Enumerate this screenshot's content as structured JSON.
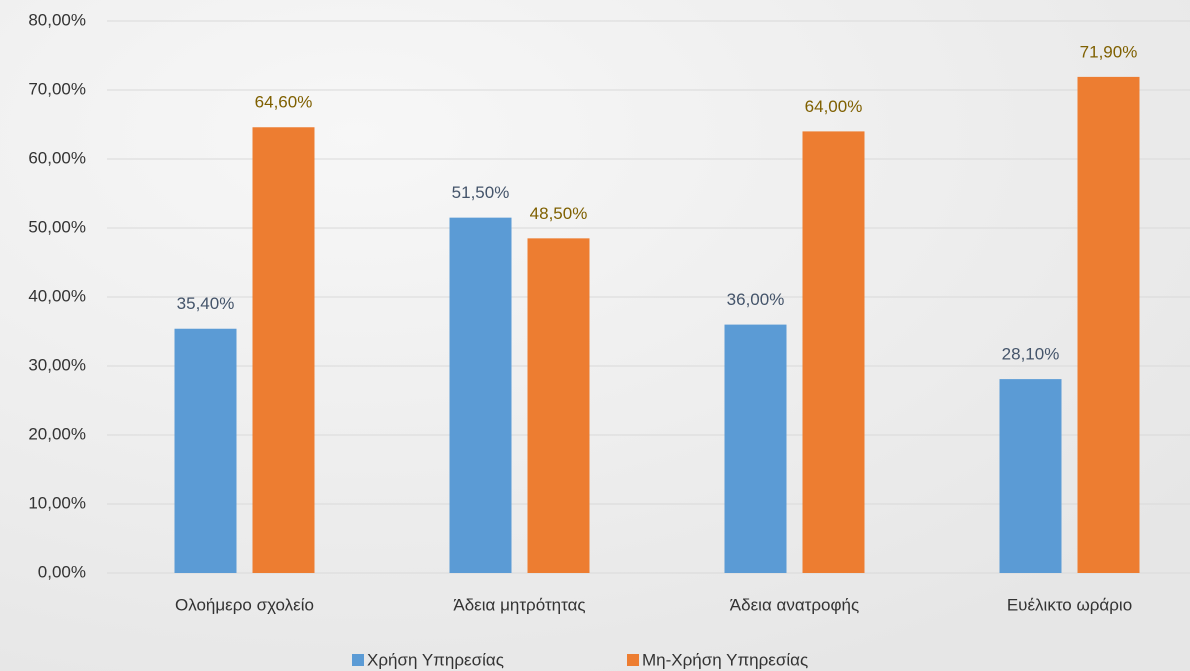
{
  "chart_data": {
    "type": "bar",
    "categories": [
      "Ολοήμερο σχολείο",
      "Άδεια μητρότητας",
      "Άδεια ανατροφής",
      "Ευέλικτο ωράριο"
    ],
    "series": [
      {
        "name": "Χρήση Υπηρεσίας",
        "color": "#5b9bd5",
        "label_color": "#44546a",
        "values": [
          35.4,
          51.5,
          36.0,
          28.1
        ],
        "value_labels": [
          "35,40%",
          "51,50%",
          "36,00%",
          "28,10%"
        ]
      },
      {
        "name": "Μη-Χρήση Υπηρεσίας",
        "color": "#ed7d31",
        "label_color": "#7f6000",
        "values": [
          64.6,
          48.5,
          64.0,
          71.9
        ],
        "value_labels": [
          "64,60%",
          "48,50%",
          "64,00%",
          "71,90%"
        ]
      }
    ],
    "ylim": [
      0,
      80
    ],
    "yticks": [
      {
        "value": 0,
        "label": "0,00%"
      },
      {
        "value": 10,
        "label": "10,00%"
      },
      {
        "value": 20,
        "label": "20,00%"
      },
      {
        "value": 30,
        "label": "30,00%"
      },
      {
        "value": 40,
        "label": "40,00%"
      },
      {
        "value": 50,
        "label": "50,00%"
      },
      {
        "value": 60,
        "label": "60,00%"
      },
      {
        "value": 70,
        "label": "70,00%"
      },
      {
        "value": 80,
        "label": "80,00%"
      }
    ],
    "grid": true,
    "legend": "bottom"
  }
}
